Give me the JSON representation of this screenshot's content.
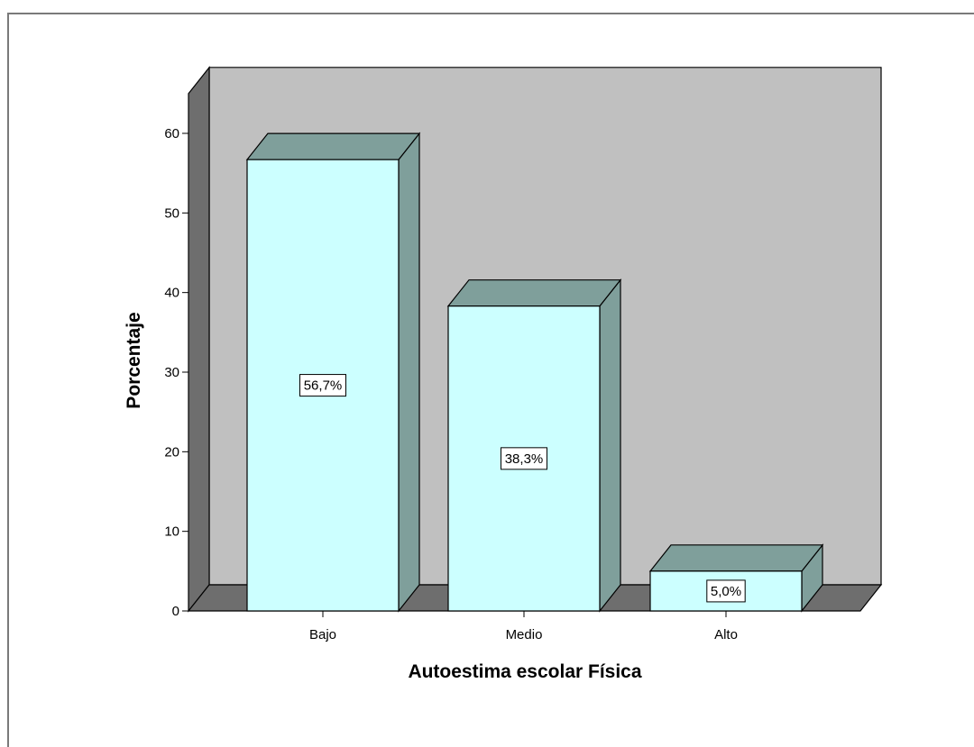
{
  "chart_data": {
    "type": "bar",
    "title": "",
    "xlabel": "Autoestima escolar Física",
    "ylabel": "Porcentaje",
    "categories": [
      "Bajo",
      "Medio",
      "Alto"
    ],
    "values": [
      56.7,
      38.3,
      5.0
    ],
    "data_labels": [
      "56,7%",
      "38,3%",
      "5,0%"
    ],
    "ylim": [
      0,
      65
    ],
    "yticks": [
      0,
      10,
      20,
      30,
      40,
      50,
      60
    ],
    "style": "3d",
    "grid": false,
    "colors": {
      "bar_front": "#ccffff",
      "bar_side": "#7f9f9b",
      "bar_top": "#7f9f9b",
      "back_wall": "#c0c0c0",
      "side_wall": "#6e6e6e",
      "floor": "#6e6e6e"
    }
  }
}
